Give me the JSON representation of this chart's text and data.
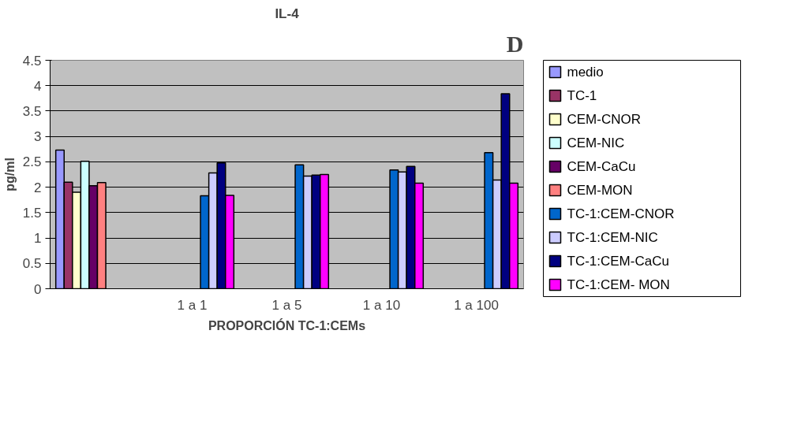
{
  "chart_data": {
    "type": "bar",
    "title": "IL-4",
    "xlabel": "PROPORCIÓN TC-1:CEMs",
    "ylabel": "pg/ml",
    "annotations": [
      "D"
    ],
    "categories": [
      null,
      "1 a 1",
      "1 a 5",
      "1 a 10",
      "1 a 100"
    ],
    "ylim": [
      0,
      4.5
    ],
    "yticks": [
      0,
      0.5,
      1,
      1.5,
      2,
      2.5,
      3,
      3.5,
      4,
      4.5
    ],
    "grid": "y",
    "legend": "right",
    "series": [
      {
        "name": "medio",
        "color": "#9999ff",
        "values": [
          2.73,
          null,
          null,
          null,
          null
        ]
      },
      {
        "name": "TC-1",
        "color": "#993366",
        "values": [
          2.1,
          null,
          null,
          null,
          null
        ]
      },
      {
        "name": "CEM-CNOR",
        "color": "#ffffcc",
        "values": [
          1.9,
          null,
          null,
          null,
          null
        ]
      },
      {
        "name": "CEM-NIC",
        "color": "#ccffff",
        "values": [
          2.51,
          null,
          null,
          null,
          null
        ]
      },
      {
        "name": "CEM-CaCu",
        "color": "#660066",
        "values": [
          2.03,
          null,
          null,
          null,
          null
        ]
      },
      {
        "name": "CEM-MON",
        "color": "#ff8080",
        "values": [
          2.09,
          null,
          null,
          null,
          null
        ]
      },
      {
        "name": "TC-1:CEM-CNOR",
        "color": "#0066cc",
        "values": [
          null,
          1.83,
          2.44,
          2.34,
          2.68
        ]
      },
      {
        "name": "TC-1:CEM-NIC",
        "color": "#ccccff",
        "values": [
          null,
          2.28,
          2.22,
          2.3,
          2.14
        ]
      },
      {
        "name": "TC-1:CEM-CaCu",
        "color": "#000080",
        "values": [
          null,
          2.48,
          2.24,
          2.41,
          3.84
        ]
      },
      {
        "name": "TC-1:CEM- MON",
        "color": "#ff00ff",
        "values": [
          null,
          1.84,
          2.25,
          2.08,
          2.08
        ]
      }
    ]
  }
}
